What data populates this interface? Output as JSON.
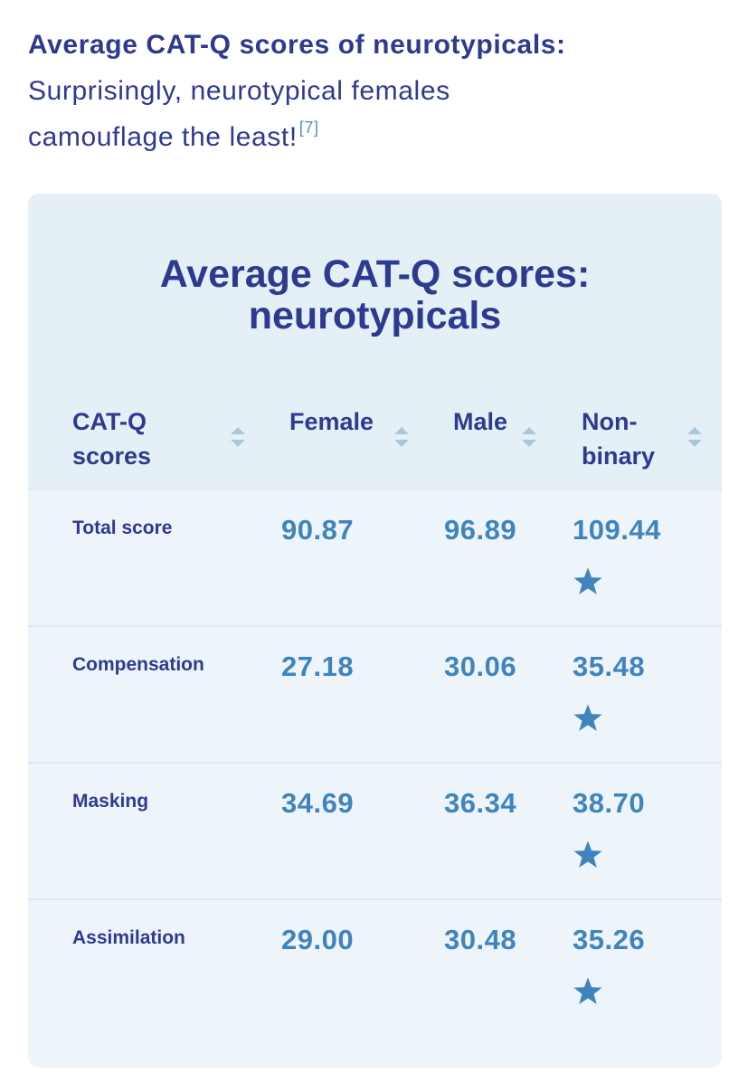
{
  "intro": {
    "heading": "Average CAT-Q scores of neurotypicals:",
    "line1": "Surprisingly, neurotypical females",
    "line2": "camouflage the least!",
    "ref": "[7]"
  },
  "table": {
    "title_line1": "Average CAT-Q scores:",
    "title_line2": "neurotypicals",
    "headers": [
      {
        "l1": "CAT-Q",
        "l2": "scores"
      },
      {
        "l1": "Female",
        "l2": ""
      },
      {
        "l1": "Male",
        "l2": ""
      },
      {
        "l1": "Non-",
        "l2": "binary"
      }
    ],
    "rows": [
      {
        "label": "Total score",
        "female": "90.87",
        "male": "96.89",
        "nonbinary": "109.44"
      },
      {
        "label": "Compensation",
        "female": "27.18",
        "male": "30.06",
        "nonbinary": "35.48"
      },
      {
        "label": "Masking",
        "female": "34.69",
        "male": "36.34",
        "nonbinary": "38.70"
      },
      {
        "label": "Assimilation",
        "female": "29.00",
        "male": "30.48",
        "nonbinary": "35.26"
      }
    ]
  },
  "icons": {
    "sort": "sort-icon",
    "highlight": "star-icon"
  },
  "colors": {
    "heading": "#2e3a8f",
    "value": "#3f84be",
    "star": "#3f84be",
    "card_bg": "#eef5fa"
  }
}
